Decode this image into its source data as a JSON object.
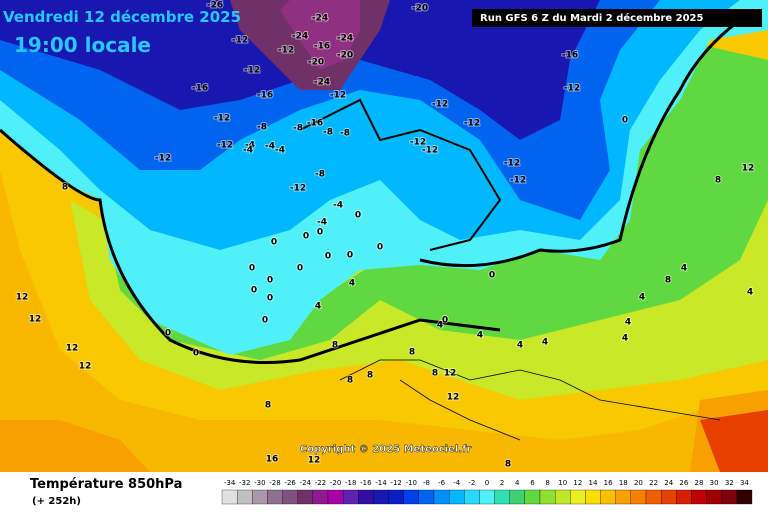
{
  "header": {
    "date": "Vendredi 12 décembre 2025",
    "local_time": "19:00 locale",
    "run": "Run GFS 6 Z du Mardi 2 décembre 2025"
  },
  "map": {
    "copyright": "Copyright © 2025 Meteociel.fr",
    "contour_labels": [
      -26,
      -24,
      -20,
      -24,
      -12,
      -16,
      -24,
      -20,
      -20,
      -24,
      -16,
      -12,
      -12,
      -12,
      -16,
      -16,
      -12,
      -12,
      -12,
      -12,
      -8,
      -8,
      -16,
      -4,
      -8,
      -8,
      -12,
      -4,
      -4,
      -4,
      -12,
      -12,
      -12,
      -12,
      -12,
      -12,
      -8,
      -4,
      -4,
      0,
      0,
      0,
      0,
      0,
      0,
      0,
      0,
      0,
      0,
      0,
      0,
      0,
      0,
      0,
      0,
      0,
      0,
      4,
      4,
      4,
      4,
      4,
      4,
      4,
      4,
      4,
      4,
      4,
      8,
      8,
      8,
      8,
      8,
      8,
      8,
      8,
      8,
      8,
      12,
      12,
      12,
      12,
      12,
      12,
      12,
      12,
      16
    ]
  },
  "legend": {
    "title": "Température 850hPa",
    "lead": "(+ 252h)",
    "values": [
      -34,
      -32,
      -30,
      -28,
      -26,
      -24,
      -22,
      -20,
      -18,
      -16,
      -14,
      -12,
      -10,
      -8,
      -6,
      -4,
      -2,
      0,
      2,
      4,
      6,
      8,
      10,
      12,
      14,
      16,
      18,
      20,
      22,
      24,
      26,
      28,
      30,
      32,
      34
    ],
    "colors": [
      "#e0e0e0",
      "#c0c0c0",
      "#a898a8",
      "#907090",
      "#805080",
      "#703068",
      "#901890",
      "#a800a8",
      "#6020b0",
      "#3010a0",
      "#1818b0",
      "#0a1ec8",
      "#0040e8",
      "#0064f0",
      "#0090f8",
      "#00b8ff",
      "#28d8ff",
      "#50f0f8",
      "#30e0b0",
      "#40d070",
      "#60d840",
      "#90e030",
      "#c0e828",
      "#e8f020",
      "#f8e000",
      "#f8c000",
      "#f8a000",
      "#f88000",
      "#f06000",
      "#e84000",
      "#d82000",
      "#c00000",
      "#a00000",
      "#800010",
      "#300000"
    ]
  }
}
